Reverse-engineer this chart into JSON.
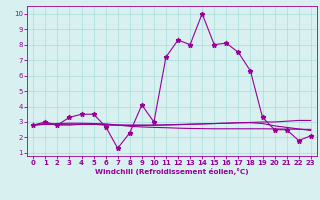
{
  "x": [
    0,
    1,
    2,
    3,
    4,
    5,
    6,
    7,
    8,
    9,
    10,
    11,
    12,
    13,
    14,
    15,
    16,
    17,
    18,
    19,
    20,
    21,
    22,
    23
  ],
  "line1": [
    2.8,
    3.0,
    2.8,
    3.3,
    3.5,
    3.5,
    2.7,
    1.3,
    2.3,
    4.1,
    3.0,
    7.2,
    8.3,
    8.0,
    10.0,
    8.0,
    8.1,
    7.5,
    6.3,
    3.3,
    2.5,
    2.5,
    1.8,
    2.1
  ],
  "line2": [
    2.8,
    2.9,
    2.8,
    2.8,
    2.85,
    2.85,
    2.8,
    2.8,
    2.8,
    2.8,
    2.8,
    2.82,
    2.84,
    2.86,
    2.88,
    2.9,
    2.92,
    2.95,
    2.97,
    3.0,
    3.0,
    3.05,
    3.1,
    3.1
  ],
  "line3": [
    2.8,
    2.85,
    2.85,
    2.85,
    2.85,
    2.85,
    2.82,
    2.8,
    2.78,
    2.78,
    2.78,
    2.8,
    2.82,
    2.85,
    2.87,
    2.9,
    2.92,
    2.95,
    2.95,
    2.9,
    2.75,
    2.65,
    2.55,
    2.45
  ],
  "line4": [
    2.8,
    2.85,
    2.9,
    2.92,
    2.92,
    2.9,
    2.88,
    2.8,
    2.72,
    2.68,
    2.65,
    2.63,
    2.6,
    2.58,
    2.57,
    2.56,
    2.56,
    2.56,
    2.56,
    2.56,
    2.55,
    2.54,
    2.53,
    2.52
  ],
  "line_color": "#990099",
  "bg_color": "#d8f0f0",
  "grid_color": "#aadddd",
  "xlabel": "Windchill (Refroidissement éolien,°C)",
  "xlim": [
    -0.5,
    23.5
  ],
  "ylim": [
    0.8,
    10.5
  ],
  "xticks": [
    0,
    1,
    2,
    3,
    4,
    5,
    6,
    7,
    8,
    9,
    10,
    11,
    12,
    13,
    14,
    15,
    16,
    17,
    18,
    19,
    20,
    21,
    22,
    23
  ],
  "yticks": [
    1,
    2,
    3,
    4,
    5,
    6,
    7,
    8,
    9,
    10
  ],
  "marker": "*",
  "markersize": 3.5,
  "linewidth": 0.8,
  "tick_fontsize": 5.0,
  "label_fontsize": 5.2
}
